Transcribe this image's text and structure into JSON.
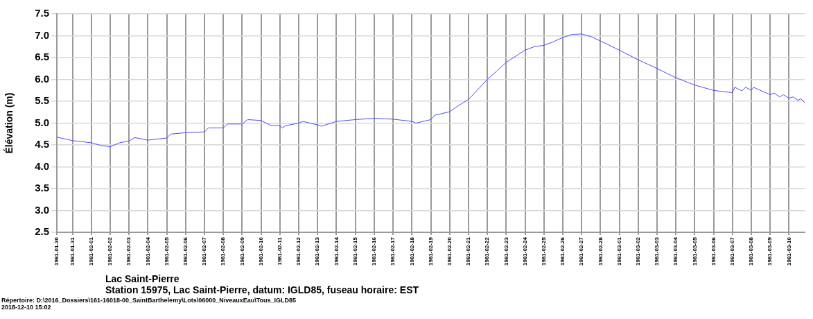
{
  "chart_data": {
    "type": "line",
    "title": "Lac Saint-Pierre",
    "subtitle": "Station 15975, Lac Saint-Pierre, datum: IGLD85, fuseau horaire: EST",
    "ylabel": "Élévation (m)",
    "annotations": [
      "Répertoire: D:\\2016_Dossiers\\161-16018-00_SaintBarthelemy\\Lots\\06000_NiveauxEau\\Tous_IGLD85",
      "2018-12-10 15:02"
    ],
    "x": [
      "1981-01-30T04:00",
      "1981-01-31",
      "1981-02-01",
      "1981-02-01T12:00",
      "1981-02-02",
      "1981-02-02T12:00",
      "1981-02-03",
      "1981-02-03T07:00",
      "1981-02-04",
      "1981-02-05",
      "1981-02-05T05:00",
      "1981-02-06",
      "1981-02-07",
      "1981-02-07T05:00",
      "1981-02-08",
      "1981-02-08T05:00",
      "1981-02-09",
      "1981-02-09T07:00",
      "1981-02-10",
      "1981-02-10T12:00",
      "1981-02-11",
      "1981-02-11T03:00",
      "1981-02-11T07:00",
      "1981-02-12",
      "1981-02-12T05:00",
      "1981-02-13",
      "1981-02-13T05:00",
      "1981-02-14",
      "1981-02-15",
      "1981-02-16",
      "1981-02-17",
      "1981-02-18",
      "1981-02-18T05:00",
      "1981-02-19",
      "1981-02-19T05:00",
      "1981-02-20",
      "1981-02-20T12:00",
      "1981-02-21",
      "1981-02-21T12:00",
      "1981-02-22",
      "1981-02-22T12:00",
      "1981-02-23",
      "1981-02-23T12:00",
      "1981-02-24",
      "1981-02-24T12:00",
      "1981-02-25",
      "1981-02-25T12:00",
      "1981-02-26",
      "1981-02-26T12:00",
      "1981-02-27",
      "1981-02-27T12:00",
      "1981-02-28",
      "1981-03-01",
      "1981-03-02",
      "1981-03-03",
      "1981-03-04",
      "1981-03-05",
      "1981-03-06",
      "1981-03-06T12:00",
      "1981-03-07",
      "1981-03-07T03:00",
      "1981-03-07T12:00",
      "1981-03-07T17:00",
      "1981-03-08",
      "1981-03-08T03:00",
      "1981-03-09",
      "1981-03-09T05:00",
      "1981-03-09T12:00",
      "1981-03-09T17:00",
      "1981-03-10",
      "1981-03-10T05:00",
      "1981-03-10T12:00",
      "1981-03-10T15:00",
      "1981-03-10T20:00"
    ],
    "series": [
      {
        "color": "#4a4aff",
        "values": [
          4.68,
          4.6,
          4.55,
          4.49,
          4.46,
          4.55,
          4.59,
          4.67,
          4.61,
          4.66,
          4.75,
          4.78,
          4.8,
          4.89,
          4.89,
          4.98,
          4.98,
          5.08,
          5.06,
          4.95,
          4.94,
          4.89,
          4.94,
          5.0,
          5.04,
          4.96,
          4.93,
          5.04,
          5.08,
          5.11,
          5.09,
          5.04,
          5.0,
          5.08,
          5.18,
          5.26,
          5.41,
          5.54,
          5.77,
          6.0,
          6.19,
          6.39,
          6.53,
          6.67,
          6.75,
          6.78,
          6.86,
          6.96,
          7.03,
          7.04,
          6.98,
          6.88,
          6.67,
          6.45,
          6.25,
          6.04,
          5.87,
          5.75,
          5.72,
          5.7,
          5.82,
          5.74,
          5.82,
          5.75,
          5.82,
          5.65,
          5.69,
          5.6,
          5.65,
          5.57,
          5.6,
          5.52,
          5.56,
          5.47
        ]
      }
    ],
    "xlim": [
      "1981-01-30T04:00",
      "1981-03-10T20:00"
    ],
    "xticks": [
      {
        "value": "1981-01-30T04:00",
        "label": "1981-01-30"
      },
      "1981-01-31",
      "1981-02-01",
      "1981-02-02",
      "1981-02-03",
      "1981-02-04",
      "1981-02-05",
      "1981-02-06",
      "1981-02-07",
      "1981-02-08",
      "1981-02-09",
      "1981-02-10",
      "1981-02-11",
      "1981-02-12",
      "1981-02-13",
      "1981-02-14",
      "1981-02-15",
      "1981-02-16",
      "1981-02-17",
      "1981-02-18",
      "1981-02-19",
      "1981-02-20",
      "1981-02-21",
      "1981-02-22",
      "1981-02-23",
      "1981-02-24",
      "1981-02-25",
      "1981-02-26",
      "1981-02-27",
      "1981-02-28",
      "1981-03-01",
      "1981-03-02",
      "1981-03-03",
      "1981-03-04",
      "1981-03-05",
      "1981-03-06",
      "1981-03-07",
      "1981-03-08",
      "1981-03-09",
      "1981-03-10"
    ],
    "ylim": [
      2.5,
      7.5
    ],
    "yticks": [
      {
        "value": 2.5,
        "label": "2.5"
      },
      {
        "value": 3,
        "label": "3.0"
      },
      {
        "value": 3.5,
        "label": "3.5"
      },
      {
        "value": 4,
        "label": "4.0"
      },
      {
        "value": 4.5,
        "label": "4.5"
      },
      {
        "value": 5,
        "label": "5.0"
      },
      {
        "value": 5.5,
        "label": "5.5"
      },
      {
        "value": 6,
        "label": "6.0"
      },
      {
        "value": 6.5,
        "label": "6.5"
      },
      {
        "value": 7,
        "label": "7.0"
      },
      {
        "value": 7.5,
        "label": "7.5"
      }
    ],
    "grid": true,
    "legend": false,
    "marker": "none",
    "line_style": "solid"
  }
}
